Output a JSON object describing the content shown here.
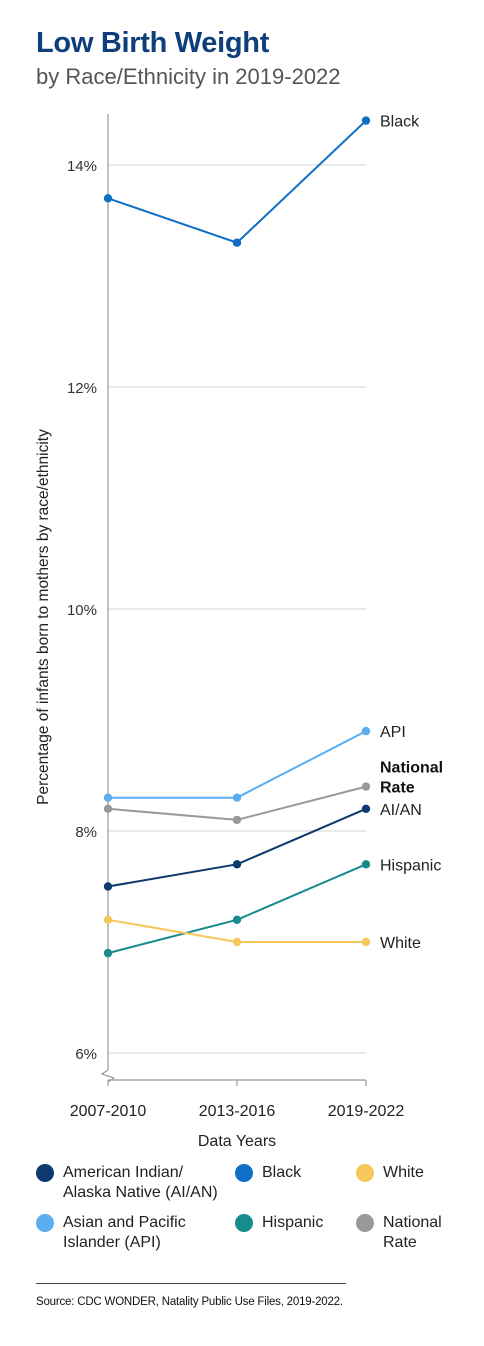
{
  "header": {
    "title": "Low Birth Weight",
    "subtitle": "by Race/Ethnicity in 2019-2022"
  },
  "chart_data": {
    "type": "line",
    "categories": [
      "2007-2010",
      "2013-2016",
      "2019-2022"
    ],
    "xlabel": "Data Years",
    "ylabel": "Percentage of infants born to mothers by race/ethnicity",
    "ylim": [
      6,
      14.5
    ],
    "yticks": [
      6,
      8,
      10,
      12,
      14
    ],
    "ytick_labels": [
      "6%",
      "8%",
      "10%",
      "12%",
      "14%"
    ],
    "grid": true,
    "series": [
      {
        "key": "black",
        "name": "Black",
        "end_label": "Black",
        "color": "#0f6fc6",
        "values": [
          13.7,
          13.3,
          14.4
        ]
      },
      {
        "key": "api",
        "name": "Asian and Pacific Islander (API)",
        "end_label": "API",
        "color": "#5aaef0",
        "values": [
          8.3,
          8.3,
          8.9
        ]
      },
      {
        "key": "national",
        "name": "National Rate",
        "end_label": "National Rate",
        "end_label_lines": [
          "National",
          "Rate"
        ],
        "bold": true,
        "color": "#999999",
        "values": [
          8.2,
          8.1,
          8.4
        ]
      },
      {
        "key": "aian",
        "name": "American Indian/ Alaska Native (AI/AN)",
        "end_label": "AI/AN",
        "color": "#0c3a6e",
        "values": [
          7.5,
          7.7,
          8.2
        ]
      },
      {
        "key": "hispanic",
        "name": "Hispanic",
        "end_label": "Hispanic",
        "color": "#178b8e",
        "values": [
          6.9,
          7.2,
          7.7
        ]
      },
      {
        "key": "white",
        "name": "White",
        "end_label": "White",
        "color": "#f7c75a",
        "values": [
          7.2,
          7.0,
          7.0
        ]
      }
    ]
  },
  "legend": [
    {
      "lines": [
        "American Indian/",
        "Alaska Native (AI/AN)"
      ],
      "color": "#0c3a6e"
    },
    {
      "lines": [
        "Black"
      ],
      "color": "#0f6fc6"
    },
    {
      "lines": [
        "White"
      ],
      "color": "#f7c75a"
    },
    {
      "lines": [
        "Asian and Pacific",
        "Islander (API)"
      ],
      "color": "#5aaef0"
    },
    {
      "lines": [
        "Hispanic"
      ],
      "color": "#178b8e"
    },
    {
      "lines": [
        "National",
        "Rate"
      ],
      "color": "#999999"
    }
  ],
  "source": "Source: CDC WONDER, Natality Public Use Files, 2019-2022."
}
